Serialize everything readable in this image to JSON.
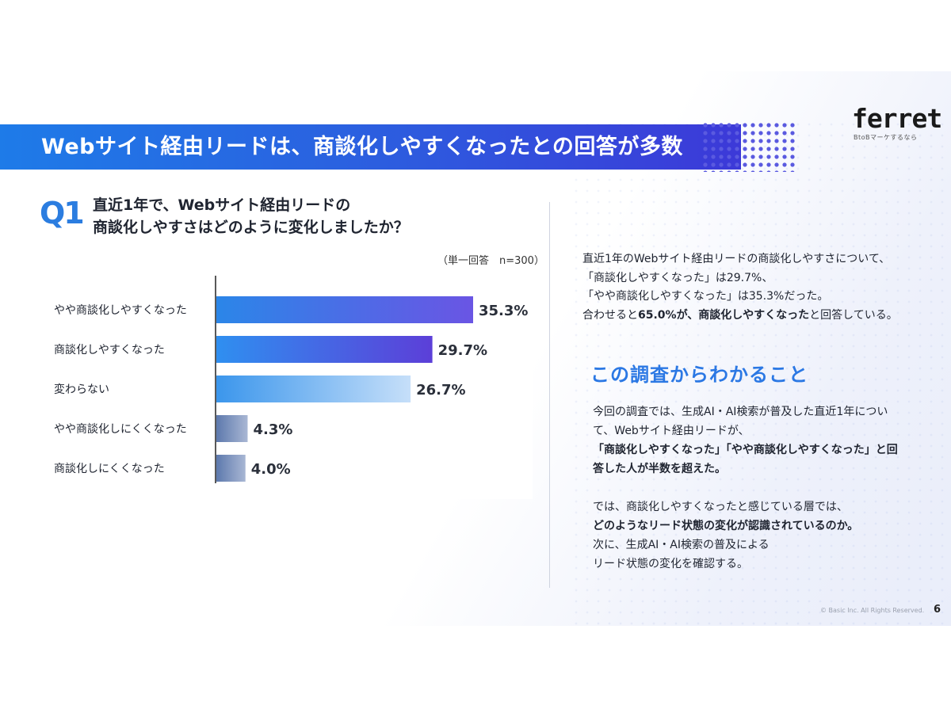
{
  "header": {
    "title": "Webサイト経由リードは、商談化しやすくなったとの回答が多数",
    "logo": "ferret",
    "logo_sub": "BtoBマーケするなら"
  },
  "question": {
    "mark": "Q1",
    "line1": "直近1年で、Webサイト経由リードの",
    "line2": "商談化しやすさはどのように変化しましたか？"
  },
  "chart_data": {
    "type": "bar",
    "orientation": "horizontal",
    "note": "（単一回答　n=300）",
    "categories": [
      "やや商談化しやすくなった",
      "商談化しやすくなった",
      "変わらない",
      "やや商談化しにくくなった",
      "商談化しにくくなった"
    ],
    "values": [
      35.3,
      29.7,
      26.7,
      4.3,
      4.0
    ],
    "value_labels": [
      "35.3%",
      "29.7%",
      "26.7%",
      "4.3%",
      "4.0%"
    ],
    "xlim": [
      0,
      35.3
    ],
    "colors": [
      [
        "#2b86e8",
        "#6a55e4"
      ],
      [
        "#2f8ff0",
        "#5c3fd8"
      ],
      [
        "#3b96ec",
        "#c6dff9"
      ],
      [
        "#5d79ad",
        "#a9b7d4"
      ],
      [
        "#5d79ad",
        "#a9b7d4"
      ]
    ]
  },
  "summary": {
    "line1": "直近1年のWebサイト経由リードの商談化しやすさについて、",
    "line2": "「商談化しやすくなった」は29.7%、",
    "line3": "「やや商談化しやすくなった」は35.3%だった。",
    "line4_a": "合わせると",
    "line4_b": "65.0%が、商談化しやすくなった",
    "line4_c": "と回答している。"
  },
  "findings": {
    "title": "この調査からわかること",
    "p1_line1": "今回の調査では、生成AI・AI検索が普及した直近1年につい",
    "p1_line2": "て、Webサイト経由リードが、",
    "p1_line3": "「商談化しやすくなった」「やや商談化しやすくなった」と回",
    "p1_line4": "答した人が半数を超えた。",
    "p2_line1": "では、商談化しやすくなったと感じている層では、",
    "p2_line2": "どのようなリード状態の変化が認識されているのか。",
    "p2_line3": "次に、生成AI・AI検索の普及による",
    "p2_line4": "リード状態の変化を確認する。"
  },
  "footer": {
    "copyright": "© Basic Inc. All Rights Reserved.",
    "page": "6"
  }
}
